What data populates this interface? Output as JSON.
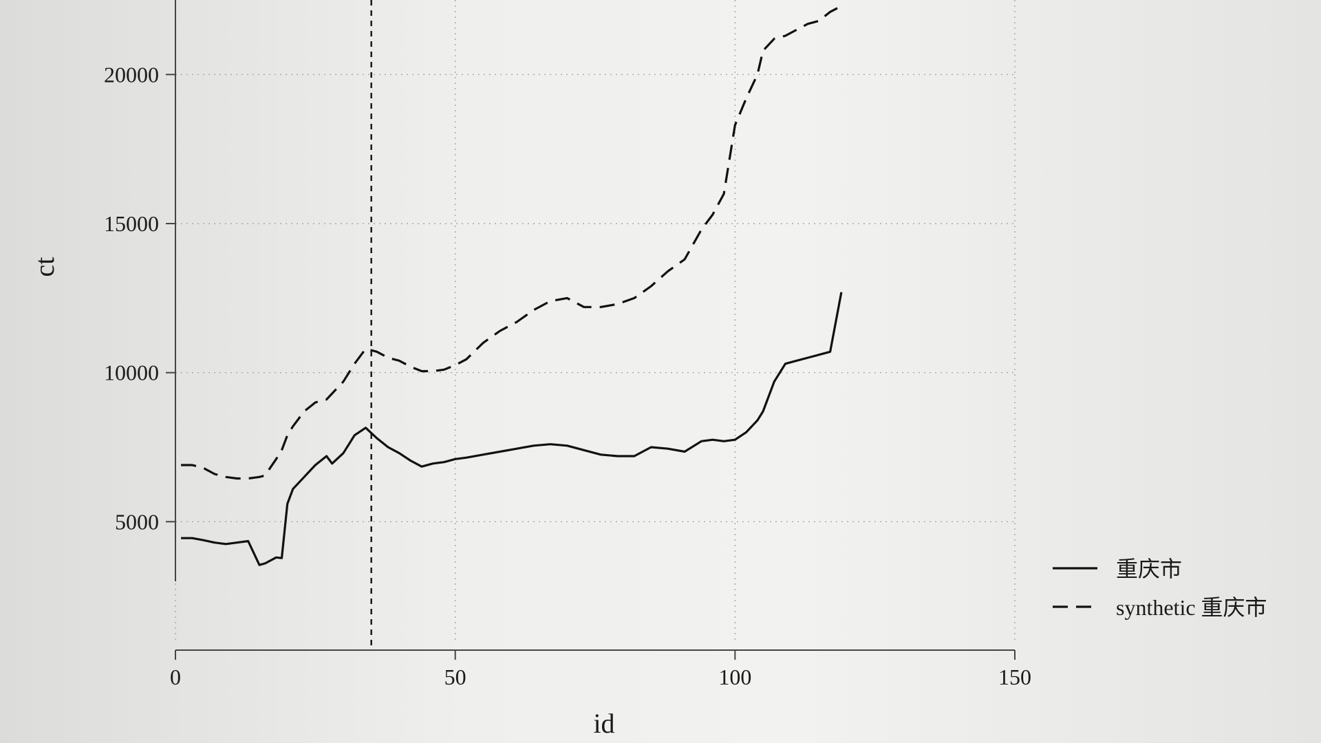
{
  "chart_data": {
    "type": "line",
    "xlabel": "id",
    "ylabel": "ct",
    "xlim": [
      0,
      150
    ],
    "ylim": [
      3000,
      22500
    ],
    "xticks": [
      0,
      50,
      100,
      150
    ],
    "xtick_labels": [
      "0",
      "50",
      "100",
      "150"
    ],
    "yticks": [
      5000,
      10000,
      15000,
      20000
    ],
    "ytick_labels": [
      "5000",
      "10000",
      "15000",
      "20000"
    ],
    "grid": true,
    "legend_position": "right",
    "vline_x": 35,
    "x": [
      1,
      3,
      5,
      7,
      9,
      11,
      13,
      15,
      16,
      18,
      19,
      20,
      21,
      23,
      25,
      27,
      28,
      30,
      32,
      34,
      36,
      38,
      40,
      42,
      44,
      46,
      48,
      50,
      52,
      55,
      58,
      61,
      64,
      67,
      70,
      73,
      76,
      79,
      82,
      85,
      88,
      91,
      94,
      96,
      98,
      100,
      102,
      104,
      105,
      107,
      109,
      111,
      113,
      115,
      117,
      119
    ],
    "series": [
      {
        "name": "重庆市",
        "style": "solid",
        "values": [
          4450,
          4450,
          4380,
          4300,
          4250,
          4300,
          4350,
          3550,
          3600,
          3800,
          3780,
          5600,
          6100,
          6500,
          6900,
          7200,
          6950,
          7300,
          7900,
          8150,
          7800,
          7500,
          7300,
          7050,
          6850,
          6950,
          7000,
          7100,
          7150,
          7250,
          7350,
          7450,
          7550,
          7600,
          7550,
          7400,
          7250,
          7200,
          7200,
          7500,
          7450,
          7350,
          7700,
          7750,
          7700,
          7750,
          8000,
          8400,
          8700,
          9700,
          10300,
          10400,
          10500,
          10600,
          10700,
          12700
        ]
      },
      {
        "name": "synthetic 重庆市",
        "style": "dashed",
        "values": [
          6900,
          6900,
          6800,
          6600,
          6500,
          6450,
          6450,
          6500,
          6550,
          7100,
          7400,
          7900,
          8200,
          8700,
          9000,
          9100,
          9300,
          9700,
          10300,
          10800,
          10700,
          10500,
          10400,
          10200,
          10050,
          10050,
          10100,
          10250,
          10450,
          11000,
          11400,
          11700,
          12100,
          12400,
          12500,
          12200,
          12200,
          12300,
          12500,
          12900,
          13400,
          13800,
          14800,
          15300,
          16000,
          18300,
          19200,
          20000,
          20800,
          21200,
          21300,
          21500,
          21700,
          21800,
          22100,
          22300
        ]
      }
    ]
  }
}
